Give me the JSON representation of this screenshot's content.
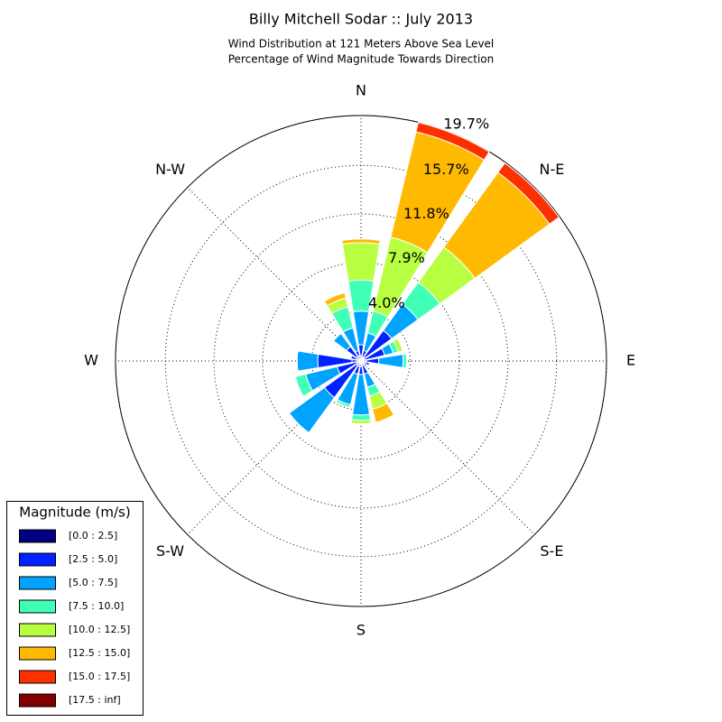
{
  "chart_data": {
    "type": "windrose",
    "title": "Billy Mitchell Sodar :: July 2013",
    "subtitle": [
      "Wind Distribution at 121 Meters Above Sea Level",
      "Percentage of Wind Magnitude Towards Direction"
    ],
    "categories": [
      "N",
      null,
      "N-E",
      null,
      "E",
      null,
      "S-E",
      null,
      "S",
      null,
      "S-W",
      null,
      "W",
      null,
      "N-W",
      null
    ],
    "ylim": [
      0,
      19.7
    ],
    "yticks": [
      {
        "value": 3.95,
        "label": "4.0%"
      },
      {
        "value": 7.9,
        "label": "7.9%"
      },
      {
        "value": 11.8,
        "label": "11.8%"
      },
      {
        "value": 15.7,
        "label": "15.7%"
      },
      {
        "value": 19.7,
        "label": "19.7%"
      }
    ],
    "grid": true,
    "legend": {
      "title": "Magnitude (m/s)",
      "position": "lower left"
    },
    "series": [
      {
        "name": "[0.0 : 2.5]",
        "color": "#000080",
        "values": [
          0.43,
          0.36,
          0.36,
          0.3,
          0.43,
          0.36,
          0.36,
          0.36,
          0.43,
          0.43,
          0.43,
          0.36,
          0.72,
          0.36,
          0.43,
          0.43
        ]
      },
      {
        "name": "[2.5 : 5.0]",
        "color": "#0020ff",
        "values": [
          0.87,
          0.51,
          2.68,
          1.65,
          1.0,
          0.36,
          0.22,
          0.72,
          0.65,
          0.65,
          3.19,
          1.6,
          2.75,
          0.5,
          1.0,
          0.43
        ]
      },
      {
        "name": "[5.0 : 7.5]",
        "color": "#00a4ff",
        "values": [
          2.7,
          1.45,
          2.61,
          0.7,
          1.96,
          0,
          0,
          1.09,
          3.26,
          2.54,
          3.51,
          2.6,
          1.67,
          0,
          1.3,
          1.88
        ]
      },
      {
        "name": "[7.5 : 10.0]",
        "color": "#40ffb7",
        "values": [
          2.5,
          1.81,
          2.17,
          0.4,
          0.29,
          0,
          0,
          0.72,
          0.43,
          0.22,
          0,
          0.87,
          0,
          0,
          0,
          1.74
        ]
      },
      {
        "name": "[10.0 : 12.5]",
        "color": "#b7ff40",
        "values": [
          3.0,
          6.09,
          3.48,
          0.4,
          0,
          0,
          0,
          1.09,
          0.29,
          0,
          0,
          0,
          0,
          0,
          0,
          0.72
        ]
      },
      {
        "name": "[12.5 : 15.0]",
        "color": "#ffb900",
        "values": [
          0.3,
          8.7,
          7.4,
          0,
          0,
          0,
          0,
          1.09,
          0,
          0,
          0,
          0,
          0,
          0,
          0,
          0.43
        ]
      },
      {
        "name": "[15.0 : 17.5]",
        "color": "#ff3000",
        "values": [
          0,
          0.78,
          0.94,
          0,
          0,
          0,
          0,
          0,
          0,
          0,
          0,
          0,
          0,
          0,
          0,
          0
        ]
      },
      {
        "name": "[17.5 : inf]",
        "color": "#800000",
        "values": [
          0,
          0,
          0,
          0,
          0,
          0,
          0,
          0,
          0,
          0,
          0,
          0,
          0,
          0,
          0,
          0
        ]
      }
    ]
  }
}
